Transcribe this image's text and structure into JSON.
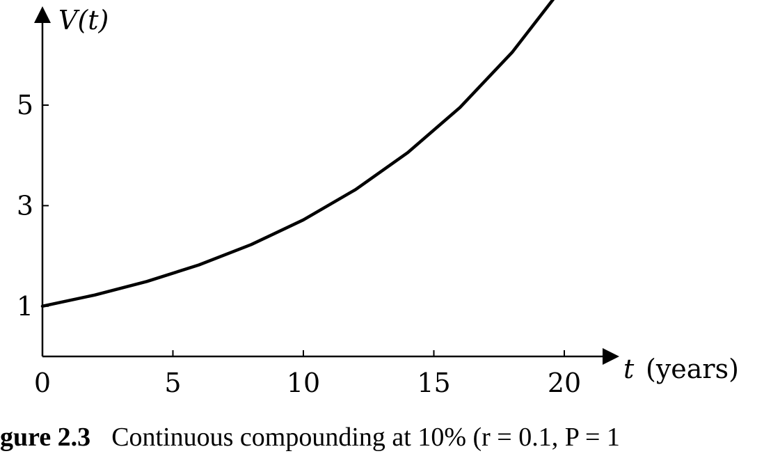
{
  "chart_data": {
    "type": "line",
    "title": "",
    "xlabel": "t",
    "xlabel_unit": "(years)",
    "ylabel": "V(t)",
    "xlim": [
      0,
      22
    ],
    "ylim": [
      0,
      7.6
    ],
    "x_ticks": [
      0,
      5,
      10,
      15,
      20
    ],
    "x_tick_labels": [
      "0",
      "5",
      "10",
      "15",
      "20"
    ],
    "y_ticks": [
      1,
      3,
      5
    ],
    "y_tick_labels": [
      "1",
      "3",
      "5"
    ],
    "grid": false,
    "legend": "none",
    "series": [
      {
        "x": [
          0,
          2,
          4,
          6,
          8,
          10,
          12,
          14,
          16,
          18,
          20
        ],
        "y": [
          1.0,
          1.221,
          1.492,
          1.822,
          2.226,
          2.718,
          3.32,
          4.055,
          4.953,
          6.05,
          7.389
        ]
      }
    ]
  },
  "caption": {
    "label": "gure 2.3",
    "text": "Continuous compounding at 10% (r = 0.1, P = 1"
  }
}
